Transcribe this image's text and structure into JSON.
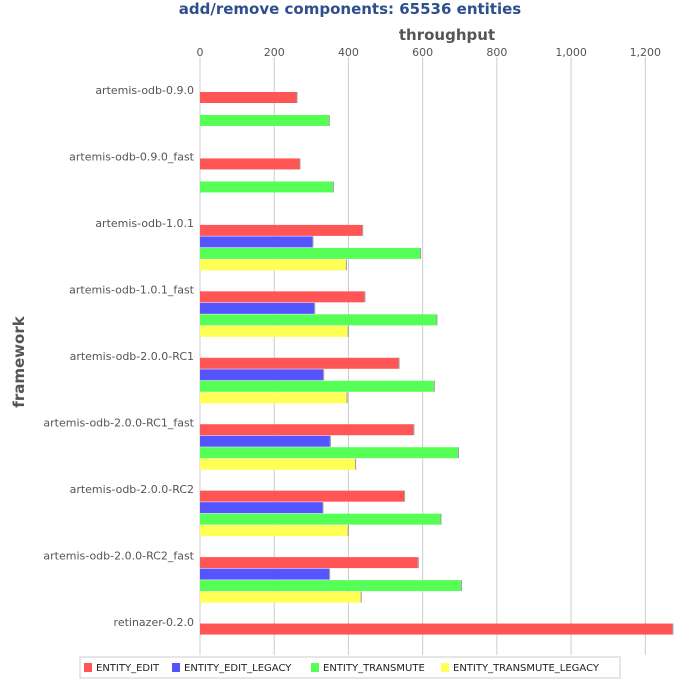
{
  "chart_data": {
    "type": "bar",
    "orientation": "horizontal",
    "title": "add/remove components: 65536 entities",
    "xlabel": "throughput",
    "ylabel": "framework",
    "xlim": [
      0,
      1280
    ],
    "xticks": [
      0,
      200,
      400,
      600,
      800,
      1000,
      1200
    ],
    "xtick_labels": [
      "0",
      "200",
      "400",
      "600",
      "800",
      "1,000",
      "1,200"
    ],
    "grid": true,
    "legend_position": "bottom",
    "categories": [
      "artemis-odb-0.9.0",
      "artemis-odb-0.9.0_fast",
      "artemis-odb-1.0.1",
      "artemis-odb-1.0.1_fast",
      "artemis-odb-2.0.0-RC1",
      "artemis-odb-2.0.0-RC1_fast",
      "artemis-odb-2.0.0-RC2",
      "artemis-odb-2.0.0-RC2_fast",
      "retinazer-0.2.0"
    ],
    "series": [
      {
        "name": "ENTITY_EDIT",
        "color": "#ff5555",
        "values": [
          260,
          268,
          437,
          443,
          535,
          575,
          550,
          587,
          1273
        ]
      },
      {
        "name": "ENTITY_EDIT_LEGACY",
        "color": "#5555ff",
        "values": [
          null,
          null,
          303,
          308,
          332,
          350,
          330,
          348,
          null
        ]
      },
      {
        "name": "ENTITY_TRANSMUTE",
        "color": "#55ff55",
        "values": [
          347,
          358,
          593,
          637,
          630,
          695,
          648,
          703,
          null
        ]
      },
      {
        "name": "ENTITY_TRANSMUTE_LEGACY",
        "color": "#ffff55",
        "values": [
          null,
          null,
          393,
          398,
          395,
          418,
          398,
          433,
          null
        ]
      }
    ]
  }
}
